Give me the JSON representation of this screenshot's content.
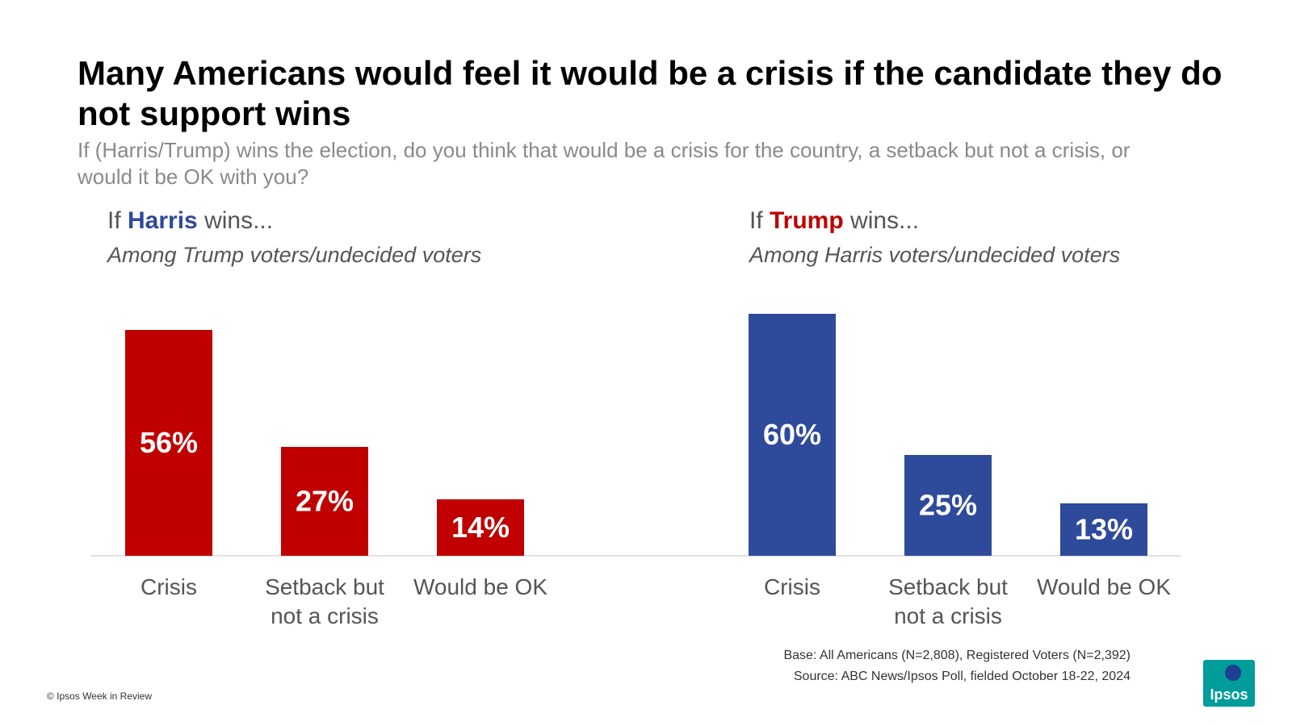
{
  "title": "Many Americans would feel it would be a crisis if the candidate they do not support wins",
  "subtitle": "If (Harris/Trump) wins the election, do you think that would be a crisis for the country, a setback but not a crisis, or would it be OK with you?",
  "panels": [
    {
      "prefix": "If ",
      "name": "Harris",
      "suffix": " wins...",
      "name_color": "#2e4a9b",
      "subtitle": "Among Trump voters/undecided voters"
    },
    {
      "prefix": "If ",
      "name": "Trump",
      "suffix": " wins...",
      "name_color": "#c00000",
      "subtitle": "Among Harris voters/undecided voters"
    }
  ],
  "chart_data": [
    {
      "type": "bar",
      "categories": [
        "Crisis",
        "Setback but not a crisis",
        "Would be OK"
      ],
      "category_lines": [
        [
          "Crisis"
        ],
        [
          "Setback but",
          "not a crisis"
        ],
        [
          "Would be OK"
        ]
      ],
      "values": [
        56,
        27,
        14
      ],
      "value_labels": [
        "56%",
        "27%",
        "14%"
      ],
      "color": "#c00000",
      "ylim": [
        0,
        60
      ]
    },
    {
      "type": "bar",
      "categories": [
        "Crisis",
        "Setback but not a crisis",
        "Would be OK"
      ],
      "category_lines": [
        [
          "Crisis"
        ],
        [
          "Setback but",
          "not a crisis"
        ],
        [
          "Would be OK"
        ]
      ],
      "values": [
        60,
        25,
        13
      ],
      "value_labels": [
        "60%",
        "25%",
        "13%"
      ],
      "color": "#2e4a9b",
      "ylim": [
        0,
        60
      ]
    }
  ],
  "footnote": {
    "base": "Base: All Americans (N=2,808), Registered Voters (N=2,392)",
    "source": "Source: ABC News/Ipsos Poll, fielded October 18-22, 2024"
  },
  "copyright": "© Ipsos Week in Review",
  "logo": {
    "text": "Ipsos",
    "color": "#009d9a"
  }
}
